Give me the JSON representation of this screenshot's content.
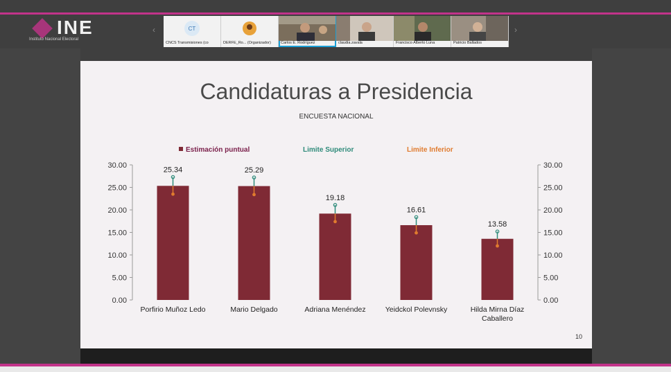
{
  "app": {
    "logo_text": "INE",
    "logo_subtitle": "Instituto Nacional Electoral"
  },
  "participants": [
    {
      "name": "CNCS Transmisiones (co",
      "icon": "initials-avatar",
      "initials": "CT"
    },
    {
      "name": "DERFE_Ro... (Organizador)",
      "icon": "person-avatar"
    },
    {
      "name": "Carlos E. Rodríguez",
      "icon": "video-feed",
      "active": true
    },
    {
      "name": "claudia.zavala",
      "icon": "video-feed"
    },
    {
      "name": "Francisco Alberto Luna",
      "icon": "video-feed"
    },
    {
      "name": "Patricio Ballados",
      "icon": "video-feed"
    }
  ],
  "slide": {
    "title": "Candidaturas a Presidencia",
    "subtitle": "ENCUESTA NACIONAL",
    "page_number": "10"
  },
  "chart_data": {
    "type": "bar",
    "categories": [
      "Porfirio Muñoz Ledo",
      "Mario Delgado",
      "Adriana Menéndez",
      "Yeidckol Polevnsky",
      "Hilda Mirna Díaz Caballero"
    ],
    "series": [
      {
        "name": "Estimación puntual",
        "values": [
          25.34,
          25.29,
          19.18,
          16.61,
          13.58
        ],
        "color": "#7f2a35"
      },
      {
        "name": "Limite Superior",
        "values": [
          27.3,
          27.2,
          21.1,
          18.4,
          15.2
        ],
        "color": "#2e8b7a"
      },
      {
        "name": "Limite Inferior",
        "values": [
          23.5,
          23.4,
          17.4,
          14.9,
          12.0
        ],
        "color": "#e07b2e"
      }
    ],
    "data_labels": [
      "25.34",
      "25.29",
      "19.18",
      "16.61",
      "13.58"
    ],
    "y_ticks": [
      "0.00",
      "5.00",
      "10.00",
      "15.00",
      "20.00",
      "25.00",
      "30.00"
    ],
    "ylim": [
      0,
      30
    ],
    "legend_position": "top"
  }
}
